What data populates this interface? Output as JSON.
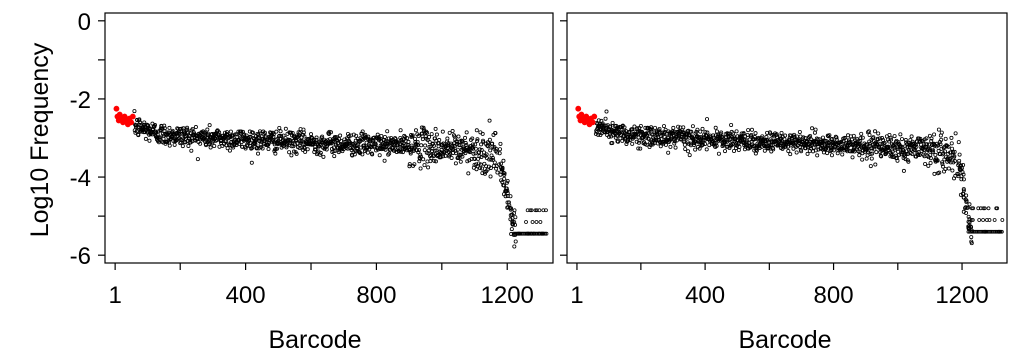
{
  "chart_data": [
    {
      "type": "scatter",
      "title": "",
      "xlabel": "Barcode",
      "ylabel": "Log10 Frequency",
      "xlim": [
        -30,
        1340
      ],
      "ylim": [
        -6.2,
        0.2
      ],
      "x_ticks_labeled": [
        1,
        400,
        800,
        1200
      ],
      "x_ticks_minor": [
        200,
        600,
        1000
      ],
      "y_ticks_labeled": [
        0,
        -2,
        -4,
        -6
      ],
      "y_ticks_minor": [
        -1,
        -3,
        -5
      ],
      "grid": false,
      "point_color": "#000000",
      "highlight_color": "#ff0000",
      "highlight_points": [
        [
          5,
          -2.25
        ],
        [
          8,
          -2.45
        ],
        [
          12,
          -2.55
        ],
        [
          15,
          -2.4
        ],
        [
          20,
          -2.5
        ],
        [
          25,
          -2.6
        ],
        [
          30,
          -2.45
        ],
        [
          35,
          -2.55
        ],
        [
          40,
          -2.65
        ],
        [
          45,
          -2.5
        ],
        [
          50,
          -2.6
        ],
        [
          55,
          -2.45
        ]
      ],
      "main_trend": [
        [
          60,
          -2.7
        ],
        [
          150,
          -2.92
        ],
        [
          300,
          -3.0
        ],
        [
          600,
          -3.12
        ],
        [
          900,
          -3.2
        ],
        [
          1100,
          -3.3
        ],
        [
          1170,
          -3.5
        ]
      ],
      "main_spread": 0.14,
      "tail_points": [
        [
          1175,
          -3.6
        ],
        [
          1180,
          -3.8
        ],
        [
          1185,
          -4.0
        ],
        [
          1190,
          -4.2
        ],
        [
          1195,
          -4.4
        ],
        [
          1200,
          -4.6
        ],
        [
          1205,
          -4.8
        ],
        [
          1210,
          -5.0
        ],
        [
          1215,
          -5.2
        ],
        [
          1220,
          -5.4
        ]
      ],
      "floor_levels": [
        -5.45,
        -5.15,
        -4.85,
        -4.55
      ],
      "floor_x": [
        1220,
        1320
      ],
      "n_points": 1320
    },
    {
      "type": "scatter",
      "title": "",
      "xlabel": "Barcode",
      "ylabel": "",
      "xlim": [
        -30,
        1340
      ],
      "ylim": [
        -6.2,
        0.2
      ],
      "x_ticks_labeled": [
        1,
        400,
        800,
        1200
      ],
      "x_ticks_minor": [
        200,
        600,
        1000
      ],
      "y_ticks_labeled": [],
      "y_ticks_minor": [
        0,
        -1,
        -2,
        -3,
        -4,
        -5,
        -6
      ],
      "grid": false,
      "point_color": "#000000",
      "highlight_color": "#ff0000",
      "highlight_points": [
        [
          5,
          -2.25
        ],
        [
          8,
          -2.45
        ],
        [
          12,
          -2.55
        ],
        [
          15,
          -2.4
        ],
        [
          20,
          -2.5
        ],
        [
          25,
          -2.6
        ],
        [
          30,
          -2.45
        ],
        [
          35,
          -2.55
        ],
        [
          40,
          -2.65
        ],
        [
          45,
          -2.5
        ],
        [
          50,
          -2.6
        ],
        [
          55,
          -2.45
        ]
      ],
      "main_trend": [
        [
          60,
          -2.7
        ],
        [
          150,
          -2.92
        ],
        [
          300,
          -3.0
        ],
        [
          600,
          -3.12
        ],
        [
          900,
          -3.2
        ],
        [
          1100,
          -3.3
        ],
        [
          1180,
          -3.5
        ]
      ],
      "main_spread": 0.13,
      "tail_points": [
        [
          1185,
          -3.7
        ],
        [
          1190,
          -3.9
        ],
        [
          1195,
          -4.1
        ],
        [
          1200,
          -4.3
        ],
        [
          1205,
          -4.5
        ],
        [
          1210,
          -4.7
        ],
        [
          1215,
          -4.9
        ],
        [
          1220,
          -5.1
        ],
        [
          1225,
          -5.3
        ]
      ],
      "floor_levels": [
        -5.4,
        -5.1,
        -4.8,
        -4.5
      ],
      "floor_x": [
        1220,
        1325
      ],
      "n_points": 1325
    }
  ]
}
